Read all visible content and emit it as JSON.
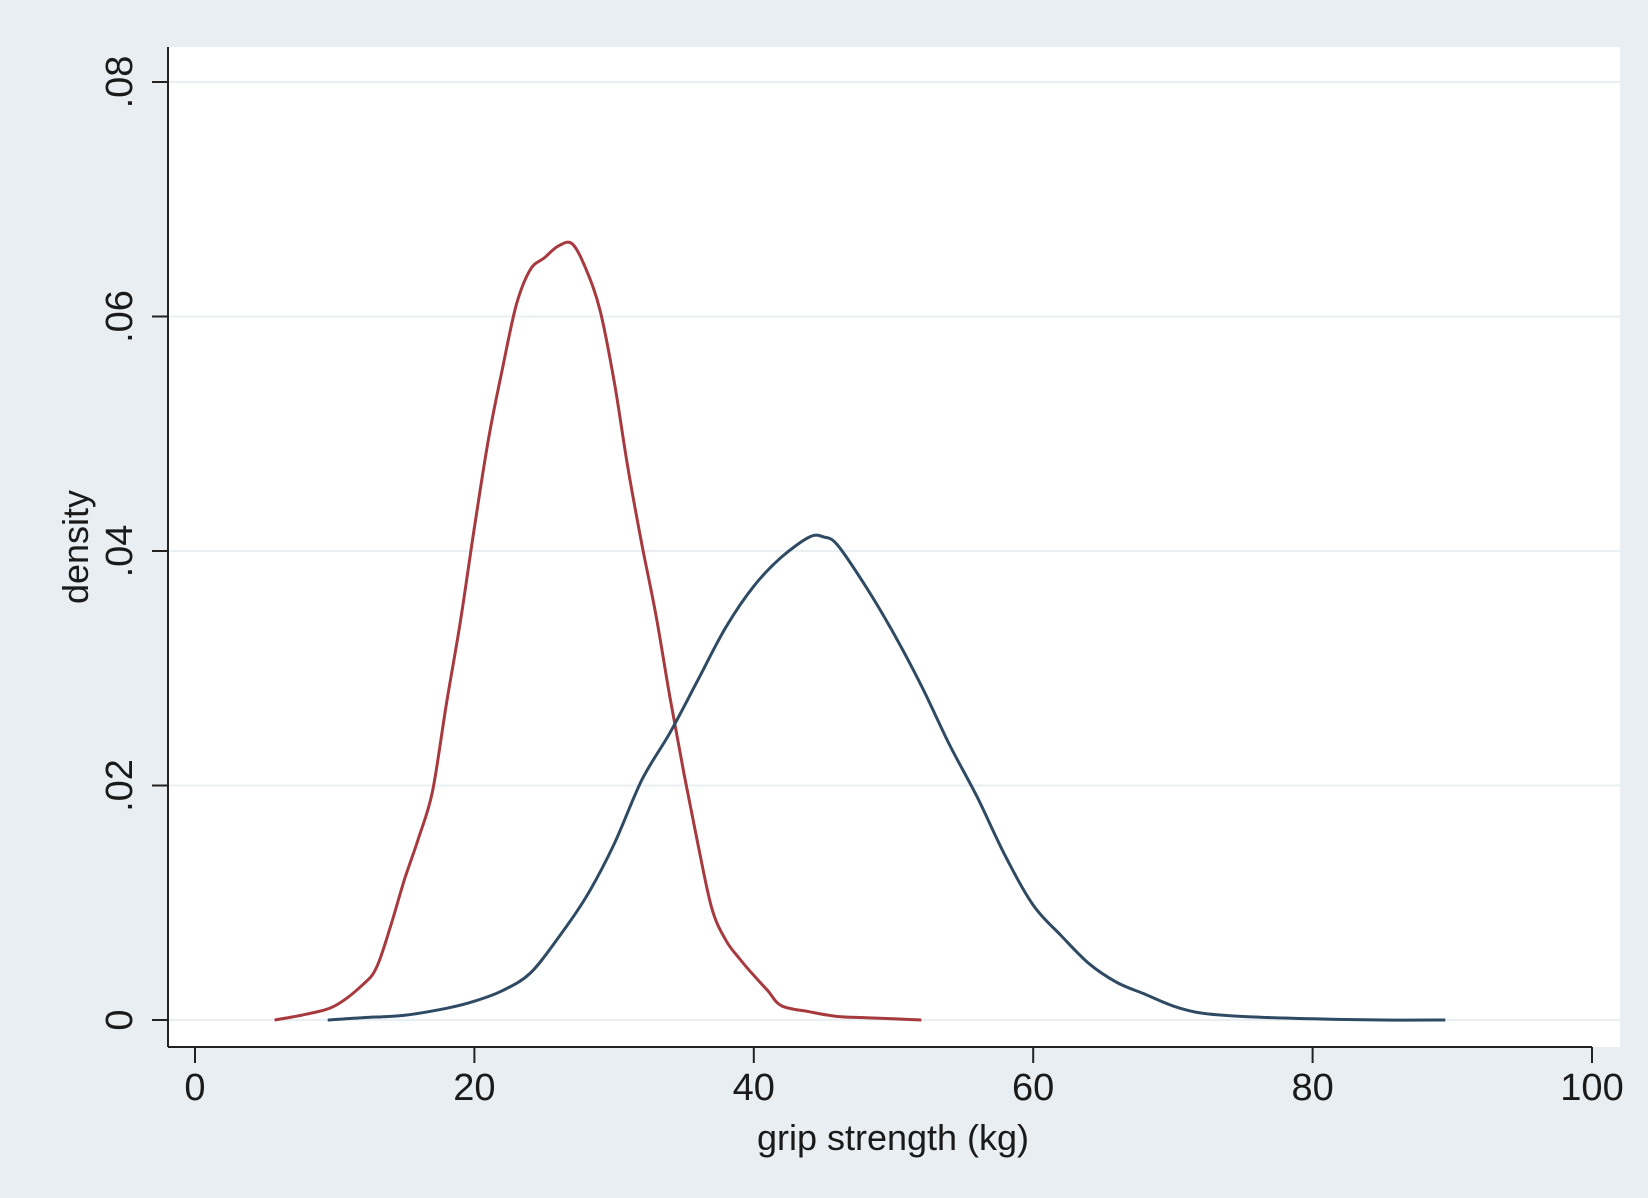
{
  "chart_data": {
    "type": "line",
    "title": "",
    "xlabel": "grip strength (kg)",
    "ylabel": "density",
    "xlim": [
      0,
      100
    ],
    "ylim": [
      0,
      0.08
    ],
    "xticks": [
      0,
      20,
      40,
      60,
      80,
      100
    ],
    "xtick_labels": [
      "0",
      "20",
      "40",
      "60",
      "80",
      "100"
    ],
    "yticks": [
      0,
      0.02,
      0.04,
      0.06,
      0.08
    ],
    "ytick_labels": [
      "0",
      ".02",
      ".04",
      ".06",
      ".08"
    ],
    "grid": "horizontal",
    "legend": "none",
    "background_color": "#e8eef2",
    "plot_background_color": "#ffffff",
    "series": [
      {
        "color": "#a63a3e",
        "points": [
          [
            5.7,
            0.0
          ],
          [
            8,
            0.0005
          ],
          [
            10,
            0.0012
          ],
          [
            12,
            0.003
          ],
          [
            13,
            0.0045
          ],
          [
            14,
            0.008
          ],
          [
            15,
            0.012
          ],
          [
            16,
            0.0155
          ],
          [
            17,
            0.0195
          ],
          [
            18,
            0.027
          ],
          [
            19,
            0.034
          ],
          [
            20,
            0.042
          ],
          [
            21,
            0.0495
          ],
          [
            22,
            0.0555
          ],
          [
            23,
            0.061
          ],
          [
            24,
            0.064
          ],
          [
            25,
            0.065
          ],
          [
            26,
            0.066
          ],
          [
            27,
            0.0662
          ],
          [
            28,
            0.064
          ],
          [
            29,
            0.0605
          ],
          [
            30,
            0.0545
          ],
          [
            31,
            0.047
          ],
          [
            32,
            0.0405
          ],
          [
            33,
            0.0345
          ],
          [
            34,
            0.0275
          ],
          [
            35,
            0.021
          ],
          [
            36,
            0.015
          ],
          [
            37,
            0.0095
          ],
          [
            38,
            0.0068
          ],
          [
            39,
            0.0052
          ],
          [
            40,
            0.0038
          ],
          [
            41,
            0.0025
          ],
          [
            42,
            0.0012
          ],
          [
            44,
            0.0007
          ],
          [
            46,
            0.0003
          ],
          [
            48,
            0.0002
          ],
          [
            50,
            0.0001
          ],
          [
            52,
            0.0
          ]
        ]
      },
      {
        "color": "#2f4b64",
        "points": [
          [
            9.5,
            0.0
          ],
          [
            12,
            0.0002
          ],
          [
            15,
            0.0004
          ],
          [
            18,
            0.001
          ],
          [
            20,
            0.0016
          ],
          [
            22,
            0.0025
          ],
          [
            24,
            0.004
          ],
          [
            26,
            0.007
          ],
          [
            28,
            0.0105
          ],
          [
            30,
            0.015
          ],
          [
            32,
            0.0205
          ],
          [
            34,
            0.0245
          ],
          [
            36,
            0.029
          ],
          [
            38,
            0.0335
          ],
          [
            40,
            0.037
          ],
          [
            42,
            0.0395
          ],
          [
            44,
            0.0412
          ],
          [
            45,
            0.0412
          ],
          [
            46,
            0.0405
          ],
          [
            48,
            0.037
          ],
          [
            50,
            0.033
          ],
          [
            52,
            0.0285
          ],
          [
            54,
            0.0235
          ],
          [
            56,
            0.019
          ],
          [
            58,
            0.014
          ],
          [
            60,
            0.0098
          ],
          [
            62,
            0.0072
          ],
          [
            64,
            0.0048
          ],
          [
            66,
            0.0032
          ],
          [
            68,
            0.0022
          ],
          [
            70,
            0.0012
          ],
          [
            72,
            0.0006
          ],
          [
            75,
            0.0003
          ],
          [
            80,
            0.0001
          ],
          [
            85,
            0.0
          ],
          [
            89.5,
            0.0
          ]
        ]
      }
    ]
  }
}
